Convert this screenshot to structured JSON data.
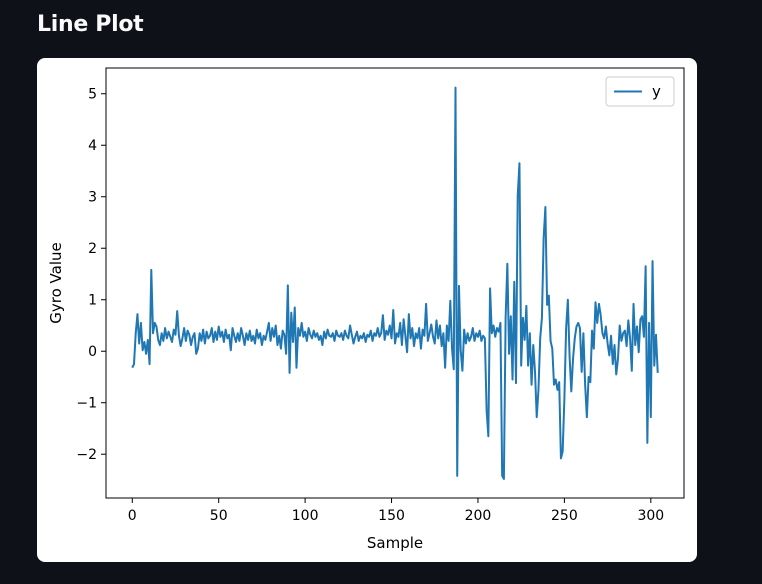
{
  "page": {
    "title": "Line Plot"
  },
  "chart_data": {
    "type": "line",
    "title": "",
    "xlabel": "Sample",
    "ylabel": "Gyro Value",
    "xlim": [
      -15.2,
      319.2
    ],
    "ylim": [
      -2.85,
      5.5
    ],
    "xticks": [
      0,
      50,
      100,
      150,
      200,
      250,
      300
    ],
    "yticks": [
      -2,
      -1,
      0,
      1,
      2,
      3,
      4,
      5
    ],
    "grid": false,
    "legend": {
      "placement": "top-right",
      "entries": [
        "y"
      ]
    },
    "series": [
      {
        "name": "y",
        "color": "#1f77b4",
        "x": [
          0,
          1,
          2,
          3,
          4,
          5,
          6,
          7,
          8,
          9,
          10,
          11,
          12,
          13,
          14,
          15,
          16,
          17,
          18,
          19,
          20,
          21,
          22,
          23,
          24,
          25,
          26,
          27,
          28,
          29,
          30,
          31,
          32,
          33,
          34,
          35,
          36,
          37,
          38,
          39,
          40,
          41,
          42,
          43,
          44,
          45,
          46,
          47,
          48,
          49,
          50,
          51,
          52,
          53,
          54,
          55,
          56,
          57,
          58,
          59,
          60,
          61,
          62,
          63,
          64,
          65,
          66,
          67,
          68,
          69,
          70,
          71,
          72,
          73,
          74,
          75,
          76,
          77,
          78,
          79,
          80,
          81,
          82,
          83,
          84,
          85,
          86,
          87,
          88,
          89,
          90,
          91,
          92,
          93,
          94,
          95,
          96,
          97,
          98,
          99,
          100,
          101,
          102,
          103,
          104,
          105,
          106,
          107,
          108,
          109,
          110,
          111,
          112,
          113,
          114,
          115,
          116,
          117,
          118,
          119,
          120,
          121,
          122,
          123,
          124,
          125,
          126,
          127,
          128,
          129,
          130,
          131,
          132,
          133,
          134,
          135,
          136,
          137,
          138,
          139,
          140,
          141,
          142,
          143,
          144,
          145,
          146,
          147,
          148,
          149,
          150,
          151,
          152,
          153,
          154,
          155,
          156,
          157,
          158,
          159,
          160,
          161,
          162,
          163,
          164,
          165,
          166,
          167,
          168,
          169,
          170,
          171,
          172,
          173,
          174,
          175,
          176,
          177,
          178,
          179,
          180,
          181,
          182,
          183,
          184,
          185,
          186,
          187,
          188,
          189,
          190,
          191,
          192,
          193,
          194,
          195,
          196,
          197,
          198,
          199,
          200,
          201,
          202,
          203,
          204,
          205,
          206,
          207,
          208,
          209,
          210,
          211,
          212,
          213,
          214,
          215,
          216,
          217,
          218,
          219,
          220,
          221,
          222,
          223,
          224,
          225,
          226,
          227,
          228,
          229,
          230,
          231,
          232,
          233,
          234,
          235,
          236,
          237,
          238,
          239,
          240,
          241,
          242,
          243,
          244,
          245,
          246,
          247,
          248,
          249,
          250,
          251,
          252,
          253,
          254,
          255,
          256,
          257,
          258,
          259,
          260,
          261,
          262,
          263,
          264,
          265,
          266,
          267,
          268,
          269,
          270,
          271,
          272,
          273,
          274,
          275,
          276,
          277,
          278,
          279,
          280,
          281,
          282,
          283,
          284,
          285,
          286,
          287,
          288,
          289,
          290,
          291,
          292,
          293,
          294,
          295,
          296,
          297,
          298,
          299,
          300,
          301,
          302,
          303,
          304
        ],
        "y": [
          -0.32,
          -0.25,
          0.35,
          0.72,
          0.15,
          0.55,
          0.02,
          0.18,
          -0.05,
          0.22,
          -0.25,
          1.58,
          0.35,
          0.55,
          0.48,
          0.22,
          0.12,
          0.35,
          0.2,
          0.45,
          0.25,
          0.38,
          0.28,
          0.18,
          0.42,
          0.32,
          0.78,
          0.3,
          0.1,
          0.25,
          0.45,
          0.2,
          0.4,
          0.32,
          0.12,
          0.28,
          0.35,
          -0.05,
          0.05,
          0.35,
          0.2,
          0.42,
          0.15,
          0.38,
          0.25,
          0.3,
          0.45,
          0.18,
          0.38,
          0.22,
          0.48,
          0.28,
          0.38,
          0.18,
          0.42,
          0.25,
          0.32,
          0.02,
          0.45,
          0.3,
          0.18,
          0.35,
          0.2,
          0.45,
          0.3,
          0.12,
          0.35,
          0.22,
          0.4,
          0.2,
          0.3,
          0.15,
          0.42,
          0.25,
          0.35,
          0.12,
          0.3,
          0.22,
          0.38,
          0.55,
          0.2,
          0.45,
          0.28,
          0.5,
          0.12,
          0.3,
          0.05,
          0.4,
          0.32,
          -0.05,
          1.28,
          -0.42,
          0.75,
          0.18,
          0.85,
          -0.32,
          0.45,
          0.3,
          0.55,
          0.28,
          0.38,
          0.2,
          0.45,
          0.32,
          0.25,
          0.4,
          0.28,
          0.35,
          0.22,
          0.3,
          0.12,
          0.38,
          0.25,
          0.42,
          0.3,
          0.28,
          0.35,
          0.2,
          0.4,
          0.3,
          0.28,
          0.35,
          0.22,
          0.4,
          0.3,
          0.25,
          0.5,
          0.32,
          0.15,
          0.28,
          0.38,
          0.2,
          0.3,
          0.25,
          0.35,
          0.18,
          0.32,
          0.28,
          0.4,
          0.2,
          0.35,
          0.3,
          0.45,
          0.28,
          0.35,
          0.7,
          0.22,
          0.4,
          0.32,
          0.5,
          0.25,
          0.8,
          0.15,
          0.35,
          0.28,
          0.55,
          0.12,
          0.62,
          0.3,
          -0.02,
          0.72,
          0.25,
          0.45,
          0.1,
          0.35,
          0.25,
          0.45,
          0.05,
          0.42,
          0.3,
          0.92,
          0.2,
          0.35,
          0.52,
          0.28,
          0.15,
          0.6,
          0.25,
          0.5,
          0.1,
          0.35,
          -0.32,
          0.5,
          0.2,
          0.98,
          0.05,
          -0.35,
          5.12,
          -2.42,
          1.27,
          0.02,
          -0.38,
          0.42,
          0.15,
          0.35,
          0.2,
          0.28,
          0.45,
          0.2,
          0.35,
          0.28,
          0.4,
          0.2,
          0.3,
          0.25,
          -1.15,
          -1.65,
          1.22,
          0.35,
          0.5,
          0.28,
          0.45,
          0.38,
          0.55,
          -2.42,
          -2.48,
          0.65,
          1.7,
          -0.05,
          0.68,
          -0.55,
          1.35,
          -0.62,
          3.02,
          3.65,
          -0.28,
          0.65,
          0.22,
          0.88,
          -0.28,
          0.35,
          -0.65,
          0.12,
          -0.4,
          -1.28,
          -0.75,
          0.25,
          0.65,
          2.2,
          2.8,
          0.9,
          1.08,
          0.2,
          0.05,
          -0.65,
          -0.55,
          -0.75,
          -0.6,
          -2.08,
          -1.95,
          -0.92,
          0.45,
          1.0,
          -0.1,
          -0.78,
          -0.15,
          0.25,
          0.48,
          0.55,
          0.45,
          -0.4,
          0.35,
          -0.65,
          -1.28,
          -0.5,
          -0.6,
          0.4,
          0.05,
          0.95,
          0.55,
          0.92,
          0.7,
          0.35,
          0.25,
          0.48,
          0.15,
          -0.08,
          0.3,
          -0.25,
          0.12,
          -0.45,
          -0.15,
          0.5,
          0.2,
          0.35,
          0.4,
          0.1,
          0.6,
          0.25,
          -0.38,
          0.92,
          0.12,
          0.48,
          -0.02,
          0.62,
          0.68,
          0.28,
          1.65,
          -1.78,
          0.55,
          -1.28,
          1.75,
          -0.28,
          0.32,
          -0.42
        ]
      }
    ]
  }
}
